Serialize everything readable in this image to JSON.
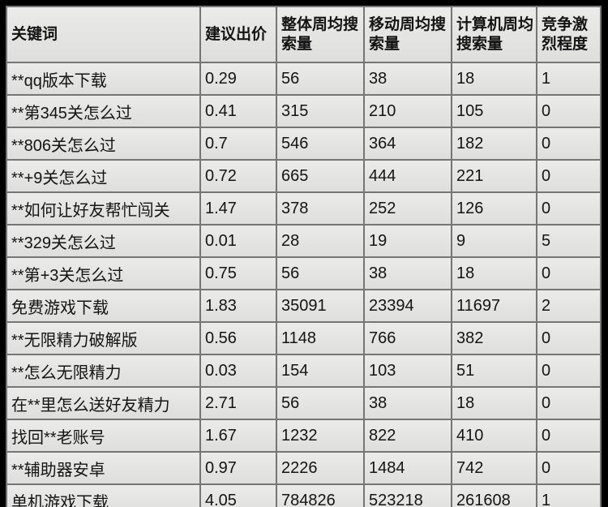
{
  "chart_data": {
    "type": "table",
    "title": "",
    "columns": [
      "关键词",
      "建议出价",
      "整体周均搜索量",
      "移动周均搜索量",
      "计算机周均搜索量",
      "竞争激烈程度"
    ],
    "rows": [
      [
        "**qq版本下载",
        "0.29",
        "56",
        "38",
        "18",
        "1"
      ],
      [
        "**第345关怎么过",
        "0.41",
        "315",
        "210",
        "105",
        "0"
      ],
      [
        "**806关怎么过",
        "0.7",
        "546",
        "364",
        "182",
        "0"
      ],
      [
        "**+9关怎么过",
        "0.72",
        "665",
        "444",
        "221",
        "0"
      ],
      [
        "**如何让好友帮忙闯关",
        "1.47",
        "378",
        "252",
        "126",
        "0"
      ],
      [
        "**329关怎么过",
        "0.01",
        "28",
        "19",
        "9",
        "5"
      ],
      [
        "**第+3关怎么过",
        "0.75",
        "56",
        "38",
        "18",
        "0"
      ],
      [
        "免费游戏下载",
        "1.83",
        "35091",
        "23394",
        "11697",
        "2"
      ],
      [
        "**无限精力破解版",
        "0.56",
        "1148",
        "766",
        "382",
        "0"
      ],
      [
        "**怎么无限精力",
        "0.03",
        "154",
        "103",
        "51",
        "0"
      ],
      [
        "在**里怎么送好友精力",
        "2.71",
        "56",
        "38",
        "18",
        "0"
      ],
      [
        "找回**老账号",
        "1.67",
        "1232",
        "822",
        "410",
        "0"
      ],
      [
        "**辅助器安卓",
        "0.97",
        "2226",
        "1484",
        "742",
        "0"
      ],
      [
        "单机游戏下载",
        "4.05",
        "784826",
        "523218",
        "261608",
        "1"
      ]
    ]
  },
  "colors": {
    "page_background": "#000000",
    "cell_background": "#e6e6e4",
    "gridline": "#757575",
    "text": "#141414"
  }
}
